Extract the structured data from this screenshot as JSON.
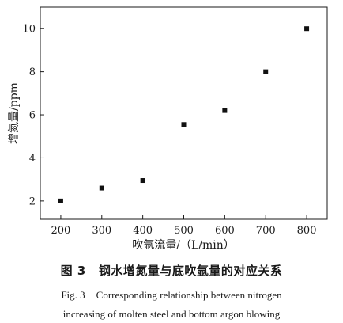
{
  "chart_data": {
    "type": "scatter",
    "x": [
      200,
      300,
      400,
      500,
      600,
      700,
      800
    ],
    "y": [
      2.0,
      2.6,
      2.95,
      5.55,
      6.2,
      8.0,
      10.0
    ],
    "xlabel": "吹氩流量/（L/min）",
    "ylabel": "增氮量/ppm",
    "xlim": [
      150,
      850
    ],
    "ylim": [
      1.15,
      11
    ],
    "xticks": [
      "200",
      "300",
      "400",
      "500",
      "600",
      "700",
      "800"
    ],
    "yticks": [
      "2",
      "4",
      "6",
      "8",
      "10"
    ],
    "xtick_values": [
      200,
      300,
      400,
      500,
      600,
      700,
      800
    ],
    "ytick_values": [
      2,
      4,
      6,
      8,
      10
    ],
    "marker": "square",
    "grid": false,
    "color": "#111111"
  },
  "caption": {
    "zh_number": "图 3",
    "zh_text": "钢水增氮量与底吹氩量的对应关系",
    "en_number": "Fig. 3",
    "en_line1": "Corresponding relationship between nitrogen",
    "en_line2": "increasing of molten steel and bottom argon blowing"
  }
}
